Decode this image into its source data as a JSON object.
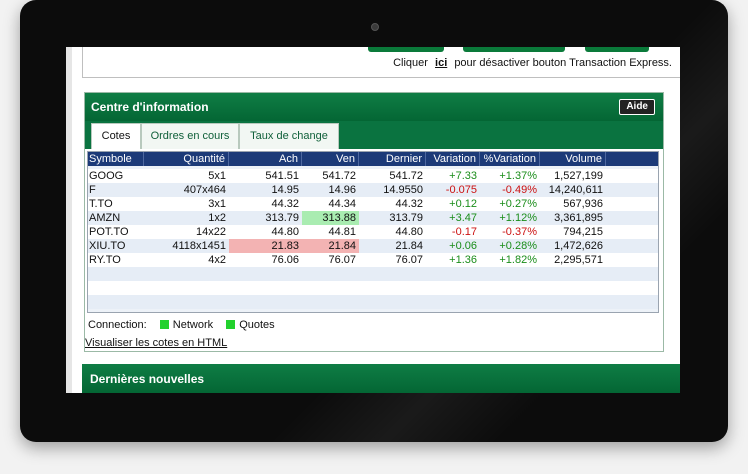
{
  "top": {
    "note_prefix": "Cliquer",
    "note_link": "ici",
    "note_suffix": "pour désactiver bouton Transaction Express."
  },
  "info_center": {
    "title": "Centre d'information",
    "help_button": "Aide",
    "tabs": [
      {
        "label": "Cotes",
        "active": true
      },
      {
        "label": "Ordres en cours",
        "active": false
      },
      {
        "label": "Taux de change",
        "active": false
      }
    ],
    "columns": [
      "Symbole",
      "Quantité",
      "Ach",
      "Ven",
      "Dernier",
      "Variation",
      "%Variation",
      "Volume"
    ],
    "rows": [
      {
        "symbol": "GOOG",
        "qty": "5x1",
        "bid": "541.51",
        "ask": "541.72",
        "last": "541.72",
        "chg": "+7.33",
        "pct": "+1.37%",
        "vol": "1,527,199",
        "trend": "pos",
        "bid_hl": "",
        "ask_hl": ""
      },
      {
        "symbol": "F",
        "qty": "407x464",
        "bid": "14.95",
        "ask": "14.96",
        "last": "14.9550",
        "chg": "-0.075",
        "pct": "-0.49%",
        "vol": "14,240,611",
        "trend": "neg",
        "bid_hl": "",
        "ask_hl": ""
      },
      {
        "symbol": "T.TO",
        "qty": "3x1",
        "bid": "44.32",
        "ask": "44.34",
        "last": "44.32",
        "chg": "+0.12",
        "pct": "+0.27%",
        "vol": "567,936",
        "trend": "pos",
        "bid_hl": "",
        "ask_hl": ""
      },
      {
        "symbol": "AMZN",
        "qty": "1x2",
        "bid": "313.79",
        "ask": "313.88",
        "last": "313.79",
        "chg": "+3.47",
        "pct": "+1.12%",
        "vol": "3,361,895",
        "trend": "pos",
        "bid_hl": "",
        "ask_hl": "green"
      },
      {
        "symbol": "POT.TO",
        "qty": "14x22",
        "bid": "44.80",
        "ask": "44.81",
        "last": "44.80",
        "chg": "-0.17",
        "pct": "-0.37%",
        "vol": "794,215",
        "trend": "neg",
        "bid_hl": "",
        "ask_hl": ""
      },
      {
        "symbol": "XIU.TO",
        "qty": "4118x1451",
        "bid": "21.83",
        "ask": "21.84",
        "last": "21.84",
        "chg": "+0.06",
        "pct": "+0.28%",
        "vol": "1,472,626",
        "trend": "pos",
        "bid_hl": "red",
        "ask_hl": "red"
      },
      {
        "symbol": " RY.TO",
        "qty": "4x2",
        "bid": "76.06",
        "ask": "76.07",
        "last": "76.07",
        "chg": "+1.36",
        "pct": "+1.82%",
        "vol": "2,295,571",
        "trend": "pos",
        "bid_hl": "",
        "ask_hl": ""
      }
    ],
    "connection_label": "Connection:",
    "network_label": "Network",
    "quotes_label": "Quotes",
    "html_link": "Visualiser les cotes en HTML"
  },
  "news": {
    "title": "Dernières nouvelles"
  }
}
